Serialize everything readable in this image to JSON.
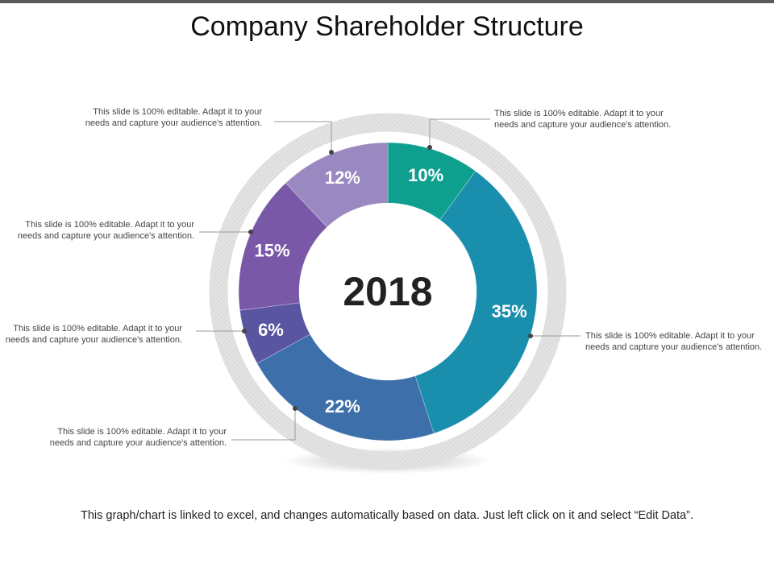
{
  "title": "Company Shareholder Structure",
  "chart_data": {
    "type": "pie",
    "donut": true,
    "center_label": "2018",
    "categories": [
      "",
      "",
      "",
      "",
      "",
      ""
    ],
    "values": [
      10,
      35,
      22,
      6,
      15,
      12
    ],
    "labels": [
      "10%",
      "35%",
      "22%",
      "6%",
      "15%",
      "12%"
    ],
    "colors": [
      "#0e9f8e",
      "#1a8fad",
      "#3d6faa",
      "#5a55a0",
      "#7958a7",
      "#9a88c0"
    ],
    "start": "12 o'clock",
    "direction": "clockwise"
  },
  "callouts": [
    "This slide is 100% editable. Adapt it to your needs and capture your audience's attention.",
    "This slide is 100% editable. Adapt it to your needs and capture your audience's attention.",
    "This slide is 100% editable. Adapt it to your needs and capture your audience's attention.",
    "This slide is 100% editable. Adapt it to your needs and capture your audience's attention.",
    "This slide is 100% editable. Adapt it to your needs and capture your audience's attention.",
    "This slide is 100% editable. Adapt it to your needs and capture your audience's attention."
  ],
  "footer": "This graph/chart is linked to excel, and changes automatically based on data. Just left click on it and select “Edit Data”."
}
